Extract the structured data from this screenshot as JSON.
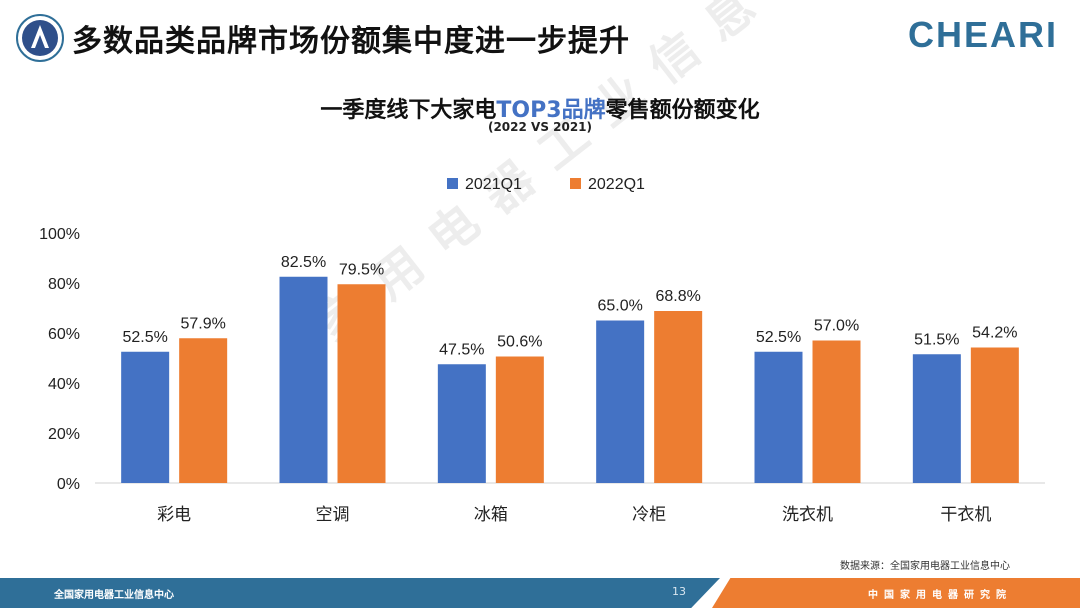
{
  "header": {
    "title": "多数品类品牌市场份额集中度进一步提升",
    "brand": "CHEARI"
  },
  "watermark": "家用电器工业信息中心",
  "chart_data": {
    "type": "bar",
    "title_prefix": "一季度线下大家电",
    "title_highlight": "TOP3品牌",
    "title_suffix": "零售额份额变化",
    "subtitle": "(2022 VS 2021)",
    "categories": [
      "彩电",
      "空调",
      "冰箱",
      "冷柜",
      "洗衣机",
      "干衣机"
    ],
    "series": [
      {
        "name": "2021Q1",
        "values": [
          52.5,
          82.5,
          47.5,
          65.0,
          52.5,
          51.5
        ],
        "labels": [
          "52.5%",
          "82.5%",
          "47.5%",
          "65.0%",
          "52.5%",
          "51.5%"
        ],
        "color": "#4472c4"
      },
      {
        "name": "2022Q1",
        "values": [
          57.9,
          79.5,
          50.6,
          68.8,
          57.0,
          54.2
        ],
        "labels": [
          "57.9%",
          "79.5%",
          "50.6%",
          "68.8%",
          "57.0%",
          "54.2%"
        ],
        "color": "#ed7d31"
      }
    ],
    "y_ticks": [
      "0%",
      "20%",
      "40%",
      "60%",
      "80%",
      "100%"
    ],
    "ylim": [
      0,
      100
    ],
    "legend_position": "top-center",
    "grid": false
  },
  "source": "数据来源：全国家用电器工业信息中心",
  "footer": {
    "org": "全国家用电器工业信息中心",
    "page": "13",
    "institute": "中国家用电器研究院"
  }
}
